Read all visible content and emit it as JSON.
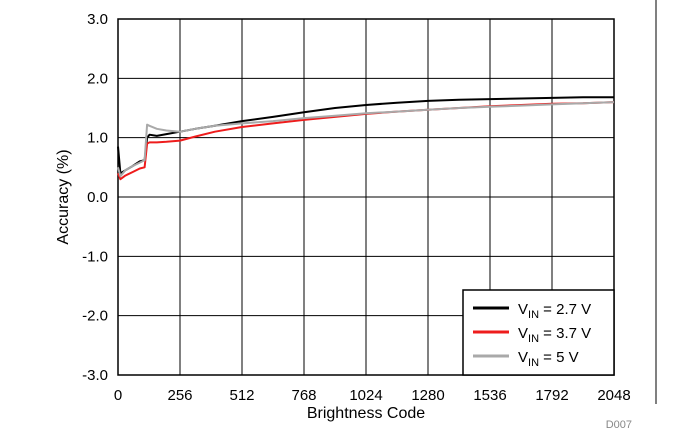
{
  "chart_data": {
    "type": "line",
    "title": "",
    "xlabel": "Brightness Code",
    "ylabel": "Accuracy (%)",
    "xlim": [
      0,
      2048
    ],
    "ylim": [
      -3.0,
      3.0
    ],
    "x_ticks": [
      "0",
      "256",
      "512",
      "768",
      "1024",
      "1280",
      "1536",
      "1792",
      "2048"
    ],
    "y_ticks": [
      "3.0",
      "2.0",
      "1.0",
      "0.0",
      "-1.0",
      "-2.0",
      "-3.0"
    ],
    "grid": true,
    "legend_position": "bottom-right",
    "series": [
      {
        "legend_main": "V",
        "legend_sub": "IN",
        "legend_tail": " = 2.7 V",
        "color": "#000000",
        "x": [
          0,
          10,
          30,
          60,
          90,
          110,
          120,
          130,
          160,
          200,
          256,
          320,
          400,
          512,
          640,
          768,
          896,
          1024,
          1152,
          1280,
          1408,
          1536,
          1664,
          1792,
          1920,
          2048
        ],
        "y": [
          0.85,
          0.4,
          0.45,
          0.52,
          0.6,
          0.62,
          1.0,
          1.05,
          1.03,
          1.06,
          1.1,
          1.15,
          1.2,
          1.28,
          1.35,
          1.43,
          1.5,
          1.55,
          1.59,
          1.62,
          1.64,
          1.65,
          1.66,
          1.67,
          1.68,
          1.68
        ]
      },
      {
        "legend_main": "V",
        "legend_sub": "IN",
        "legend_tail": " = 3.7 V",
        "color": "#ee1c1c",
        "x": [
          0,
          10,
          30,
          60,
          90,
          110,
          120,
          130,
          160,
          200,
          256,
          320,
          400,
          512,
          640,
          768,
          896,
          1024,
          1152,
          1280,
          1408,
          1536,
          1664,
          1792,
          1920,
          2048
        ],
        "y": [
          0.4,
          0.3,
          0.36,
          0.42,
          0.48,
          0.5,
          0.9,
          0.92,
          0.92,
          0.93,
          0.95,
          1.02,
          1.1,
          1.18,
          1.24,
          1.3,
          1.35,
          1.4,
          1.44,
          1.47,
          1.5,
          1.53,
          1.55,
          1.57,
          1.58,
          1.6
        ]
      },
      {
        "legend_main": "V",
        "legend_sub": "IN",
        "legend_tail": " = 5 V",
        "color": "#a9a9a9",
        "x": [
          0,
          10,
          30,
          60,
          90,
          110,
          120,
          130,
          160,
          200,
          256,
          320,
          400,
          512,
          640,
          768,
          896,
          1024,
          1152,
          1280,
          1408,
          1536,
          1664,
          1792,
          1920,
          2048
        ],
        "y": [
          0.5,
          0.35,
          0.45,
          0.52,
          0.58,
          0.62,
          1.22,
          1.2,
          1.15,
          1.12,
          1.1,
          1.15,
          1.2,
          1.24,
          1.28,
          1.33,
          1.37,
          1.41,
          1.44,
          1.47,
          1.5,
          1.52,
          1.54,
          1.56,
          1.58,
          1.6
        ]
      }
    ]
  },
  "footer_code": "D007"
}
